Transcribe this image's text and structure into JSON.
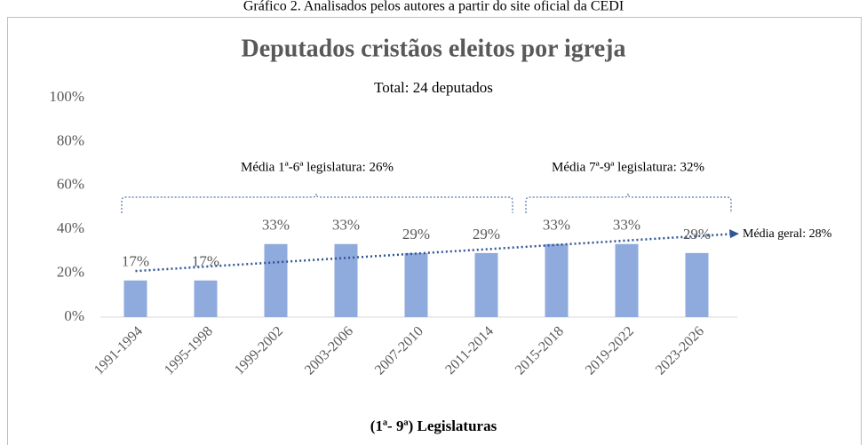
{
  "caption": "Gráfico 2. Analisados pelos autores a partir do site oficial da CEDI",
  "chart_data": {
    "type": "bar",
    "title": "Deputados cristãos eleitos por igreja",
    "subtitle": "Total: 24 deputados",
    "x_label": "(1ª- 9ª) Legislaturas",
    "categories": [
      "1991-1994",
      "1995-1998",
      "1999-2002",
      "2003-2006",
      "2007-2010",
      "2011-2014",
      "2015-2018",
      "2019-2022",
      "2023-2026"
    ],
    "values": [
      16.7,
      16.7,
      33.3,
      33.3,
      29.2,
      29.2,
      33.3,
      33.3,
      29.2
    ],
    "value_labels": [
      "17%",
      "17%",
      "33%",
      "33%",
      "29%",
      "29%",
      "33%",
      "33%",
      "29%"
    ],
    "color": "#8faadc",
    "ylim": [
      0,
      100
    ],
    "yticks": [
      {
        "value": 0,
        "label": "0%"
      },
      {
        "value": 20,
        "label": "20%"
      },
      {
        "value": 40,
        "label": "40%"
      },
      {
        "value": 60,
        "label": "60%"
      },
      {
        "value": 80,
        "label": "80%"
      },
      {
        "value": 100,
        "label": "100%"
      }
    ],
    "trend": {
      "color": "#2f5597",
      "start": 21,
      "end": 38
    },
    "annotations": [
      "Média 1ª-6ª legislatura: 26%",
      "Média 7ª-9ª legislatura: 32%",
      "Média geral: 28%"
    ]
  }
}
